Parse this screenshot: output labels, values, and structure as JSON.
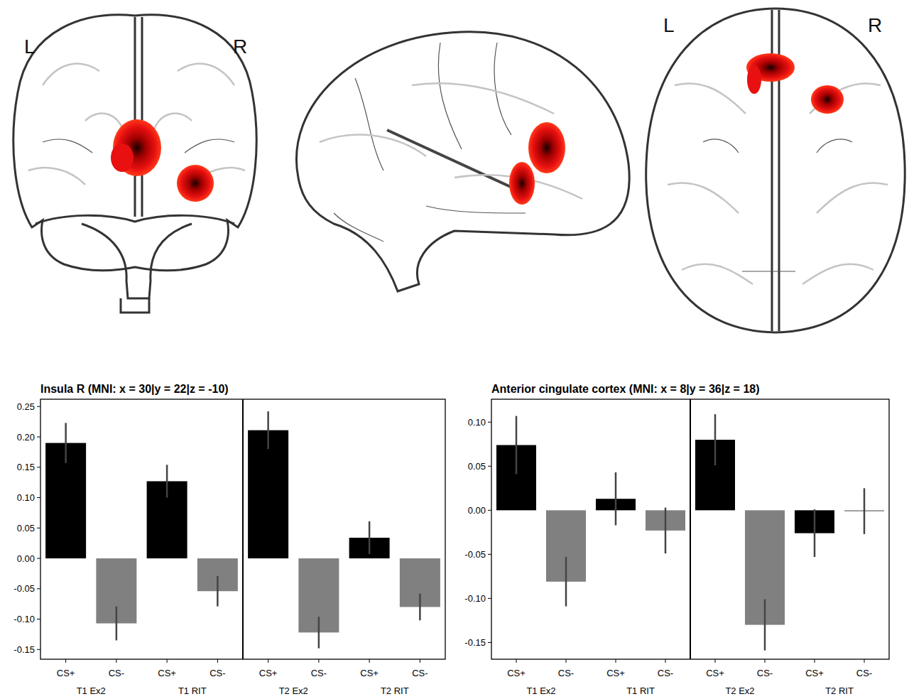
{
  "glass_brain": {
    "coronal": {
      "left": "L",
      "right": "R"
    },
    "axial": {
      "left": "L",
      "right": "R"
    }
  },
  "chart_data": [
    {
      "type": "bar",
      "title": "Insula R (MNI: x = 30|y = 22|z = -10)",
      "categories": [
        "CS+",
        "CS-",
        "CS+",
        "CS-",
        "CS+",
        "CS-",
        "CS+",
        "CS-"
      ],
      "group_labels": [
        "T1 Ex2",
        "T1 RIT",
        "T2 Ex2",
        "T2 RIT"
      ],
      "values": [
        0.19,
        -0.107,
        0.127,
        -0.054,
        0.211,
        -0.122,
        0.034,
        -0.08
      ],
      "errors": [
        0.033,
        0.028,
        0.027,
        0.025,
        0.031,
        0.026,
        0.027,
        0.022
      ],
      "colors": [
        "#000000",
        "#808080",
        "#000000",
        "#808080",
        "#000000",
        "#808080",
        "#000000",
        "#808080"
      ],
      "ylim": [
        -0.166,
        0.262
      ],
      "yticks": [
        -0.15,
        {
          "value": -0.1,
          "label": "-0.10"
        },
        -0.05,
        {
          "value": 0,
          "label": "0.00"
        },
        0.05,
        {
          "value": 0.1,
          "label": "0.10"
        },
        0.15,
        {
          "value": 0.2,
          "label": "0.20"
        },
        0.25
      ]
    },
    {
      "type": "bar",
      "title": "Anterior cingulate cortex (MNI: x = 8|y = 36|z = 18)",
      "categories": [
        "CS+",
        "CS-",
        "CS+",
        "CS-",
        "CS+",
        "CS-",
        "CS+",
        "CS-"
      ],
      "group_labels": [
        "T1 Ex2",
        "T1 RIT",
        "T2 Ex2",
        "T2 RIT"
      ],
      "values": [
        0.074,
        -0.081,
        0.013,
        -0.023,
        0.08,
        -0.13,
        -0.026,
        -0.001
      ],
      "errors": [
        0.033,
        0.028,
        0.03,
        0.026,
        0.029,
        0.029,
        0.027,
        0.026
      ],
      "colors": [
        "#000000",
        "#808080",
        "#000000",
        "#808080",
        "#000000",
        "#808080",
        "#000000",
        "#808080"
      ],
      "ylim": [
        -0.169,
        0.126
      ],
      "yticks": [
        -0.15,
        {
          "value": -0.1,
          "label": "-0.10"
        },
        -0.05,
        {
          "value": 0,
          "label": "0.00"
        },
        0.05,
        {
          "value": 0.1,
          "label": "0.10"
        }
      ]
    }
  ]
}
